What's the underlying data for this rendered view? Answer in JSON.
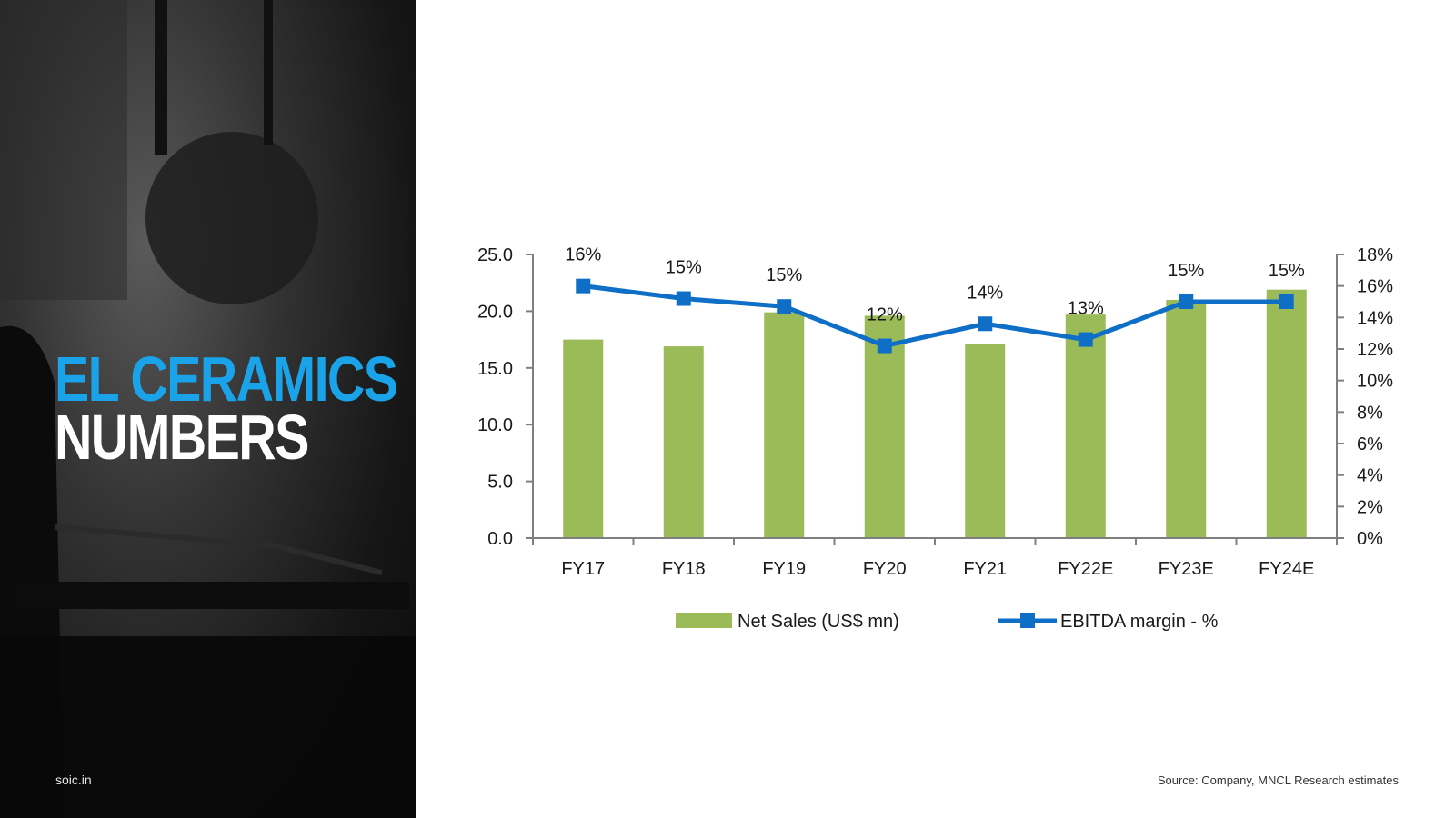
{
  "headline": {
    "line1": "EL CERAMICS",
    "line2": "NUMBERS"
  },
  "site_label": "soic.in",
  "source_note": "Source: Company, MNCL Research estimates",
  "colors": {
    "accent": "#1aa3e8",
    "bar": "#9bbb59",
    "line": "#0f6fc6"
  },
  "chart_data": {
    "type": "bar",
    "categories": [
      "FY17",
      "FY18",
      "FY19",
      "FY20",
      "FY21",
      "FY22E",
      "FY23E",
      "FY24E"
    ],
    "series": [
      {
        "name": "Net Sales (US$ mn)",
        "type": "bar",
        "axis": "left",
        "values": [
          17.5,
          16.9,
          19.9,
          19.6,
          17.1,
          19.7,
          21.0,
          21.9
        ]
      },
      {
        "name": "EBITDA margin - %",
        "type": "line",
        "axis": "right",
        "values": [
          16,
          15.2,
          14.7,
          12.2,
          13.6,
          12.6,
          15,
          15
        ],
        "labels": [
          "16%",
          "15%",
          "15%",
          "12%",
          "14%",
          "13%",
          "15%",
          "15%"
        ]
      }
    ],
    "y_left": {
      "ylim": [
        0,
        25
      ],
      "ticks": [
        "0.0",
        "5.0",
        "10.0",
        "15.0",
        "20.0",
        "25.0"
      ]
    },
    "y_right": {
      "ylim": [
        0,
        18
      ],
      "ticks": [
        "0%",
        "2%",
        "4%",
        "6%",
        "8%",
        "10%",
        "12%",
        "14%",
        "16%",
        "18%"
      ]
    },
    "legend_position": "bottom",
    "grid": false
  }
}
